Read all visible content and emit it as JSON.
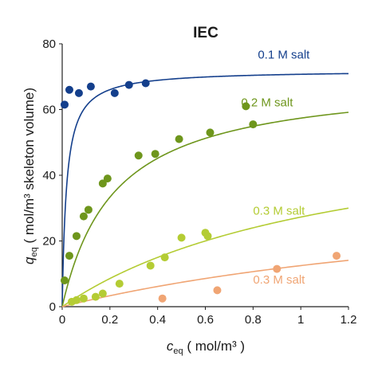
{
  "chart_data": {
    "type": "scatter",
    "title": "IEC",
    "xlabel": {
      "main": "c",
      "sub": "eq",
      "unit": "( mol/m³ )"
    },
    "ylabel": {
      "main": "q",
      "sub": "eq",
      "unit": "( mol/m³ skeleton volume)"
    },
    "xlim": [
      0,
      1.2
    ],
    "ylim": [
      0,
      80
    ],
    "xticks": [
      "0",
      "0.2",
      "0.4",
      "0.6",
      "0.8",
      "1",
      "1.2"
    ],
    "yticks": [
      "0",
      "20",
      "40",
      "60",
      "80"
    ],
    "grid": false,
    "series": [
      {
        "name": "0.1 M salt",
        "color": "#143f8c",
        "points": [
          [
            0.01,
            61.5
          ],
          [
            0.03,
            66
          ],
          [
            0.07,
            65
          ],
          [
            0.12,
            67
          ],
          [
            0.22,
            65
          ],
          [
            0.28,
            67.5
          ],
          [
            0.35,
            68
          ]
        ],
        "fit": {
          "qmax": 72,
          "K": 0.018
        }
      },
      {
        "name": "0.2 M salt",
        "color": "#6e961c",
        "points": [
          [
            0.01,
            8
          ],
          [
            0.03,
            15.5
          ],
          [
            0.06,
            21.5
          ],
          [
            0.09,
            27.5
          ],
          [
            0.11,
            29.5
          ],
          [
            0.17,
            37.5
          ],
          [
            0.19,
            39
          ],
          [
            0.32,
            46
          ],
          [
            0.39,
            46.5
          ],
          [
            0.49,
            51
          ],
          [
            0.62,
            53
          ],
          [
            0.77,
            61
          ],
          [
            0.8,
            55.5
          ]
        ],
        "fit": {
          "qmax": 70,
          "K": 0.22
        }
      },
      {
        "name": "0.3 M salt",
        "color": "#b4cc34",
        "points": [
          [
            0.04,
            1.5
          ],
          [
            0.06,
            2
          ],
          [
            0.09,
            2.5
          ],
          [
            0.14,
            3
          ],
          [
            0.17,
            4
          ],
          [
            0.24,
            7
          ],
          [
            0.37,
            12.5
          ],
          [
            0.43,
            15
          ],
          [
            0.5,
            21
          ],
          [
            0.6,
            22.5
          ],
          [
            0.61,
            21.5
          ]
        ],
        "fit": {
          "qmax": 60,
          "K": 1.2
        }
      },
      {
        "name": "0.3 M salt",
        "color": "#f0a574",
        "points": [
          [
            0.42,
            2.5
          ],
          [
            0.65,
            5
          ],
          [
            0.9,
            11.5
          ],
          [
            1.15,
            15.5
          ]
        ],
        "fit": {
          "qmax": 40,
          "K": 2.2
        }
      }
    ],
    "labels": [
      {
        "series": 0,
        "x": 0.82,
        "y": 75.5
      },
      {
        "series": 1,
        "x": 0.75,
        "y": 61
      },
      {
        "series": 2,
        "x": 0.8,
        "y": 28
      },
      {
        "series": 3,
        "x": 0.8,
        "y": 7
      }
    ]
  }
}
